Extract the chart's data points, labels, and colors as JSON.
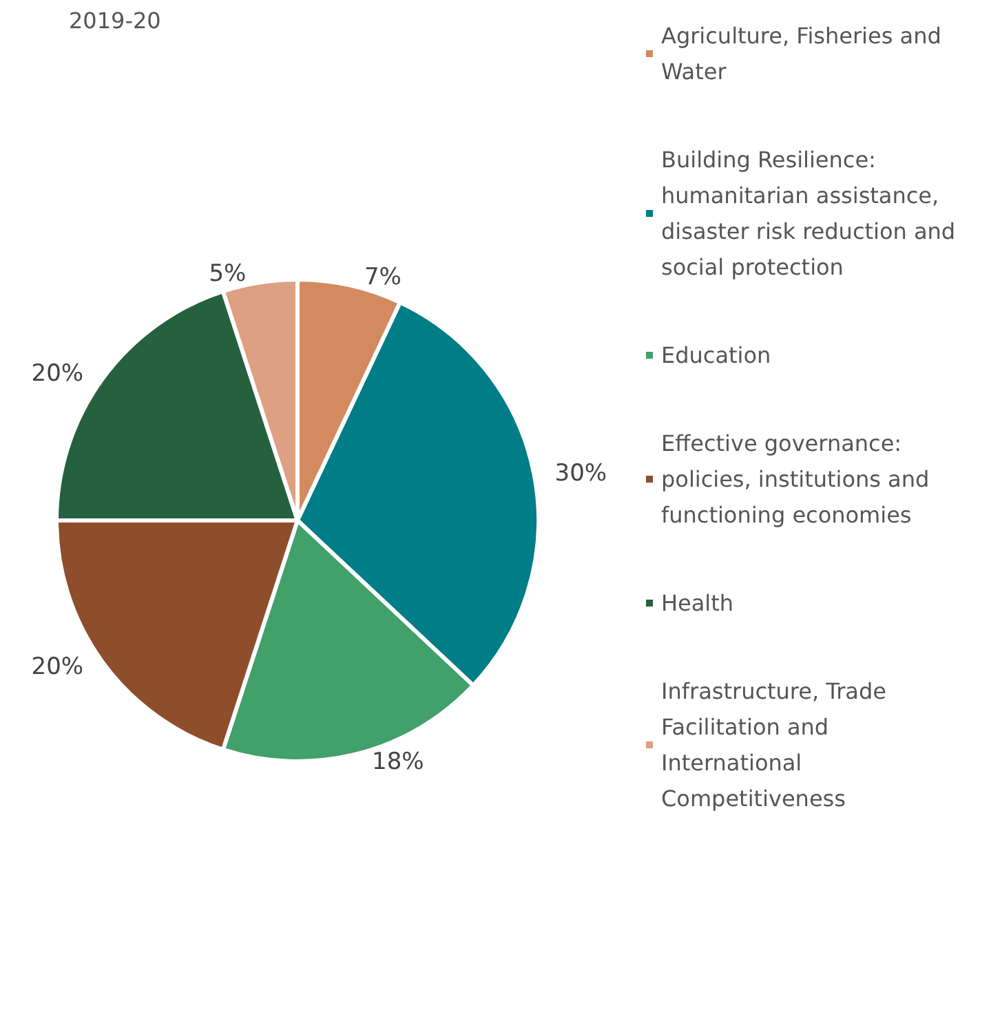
{
  "chart_data": {
    "type": "pie",
    "title": "2019-20",
    "categories": [
      "Agriculture, Fisheries and Water",
      "Building Resilience: humanitarian assistance, disaster risk reduction and social protection",
      "Education",
      "Effective governance: policies, institutions and functioning economies",
      "Health",
      "Infrastructure, Trade Facilitation and International Competitiveness"
    ],
    "values": [
      7,
      30,
      18,
      20,
      20,
      5
    ],
    "colors": [
      "#d38a5f",
      "#007d87",
      "#42a06b",
      "#8e4e2b",
      "#26613f",
      "#dda083"
    ],
    "value_labels": [
      "7%",
      "30%",
      "18%",
      "20%",
      "20%",
      "5%"
    ],
    "legend": "right"
  }
}
